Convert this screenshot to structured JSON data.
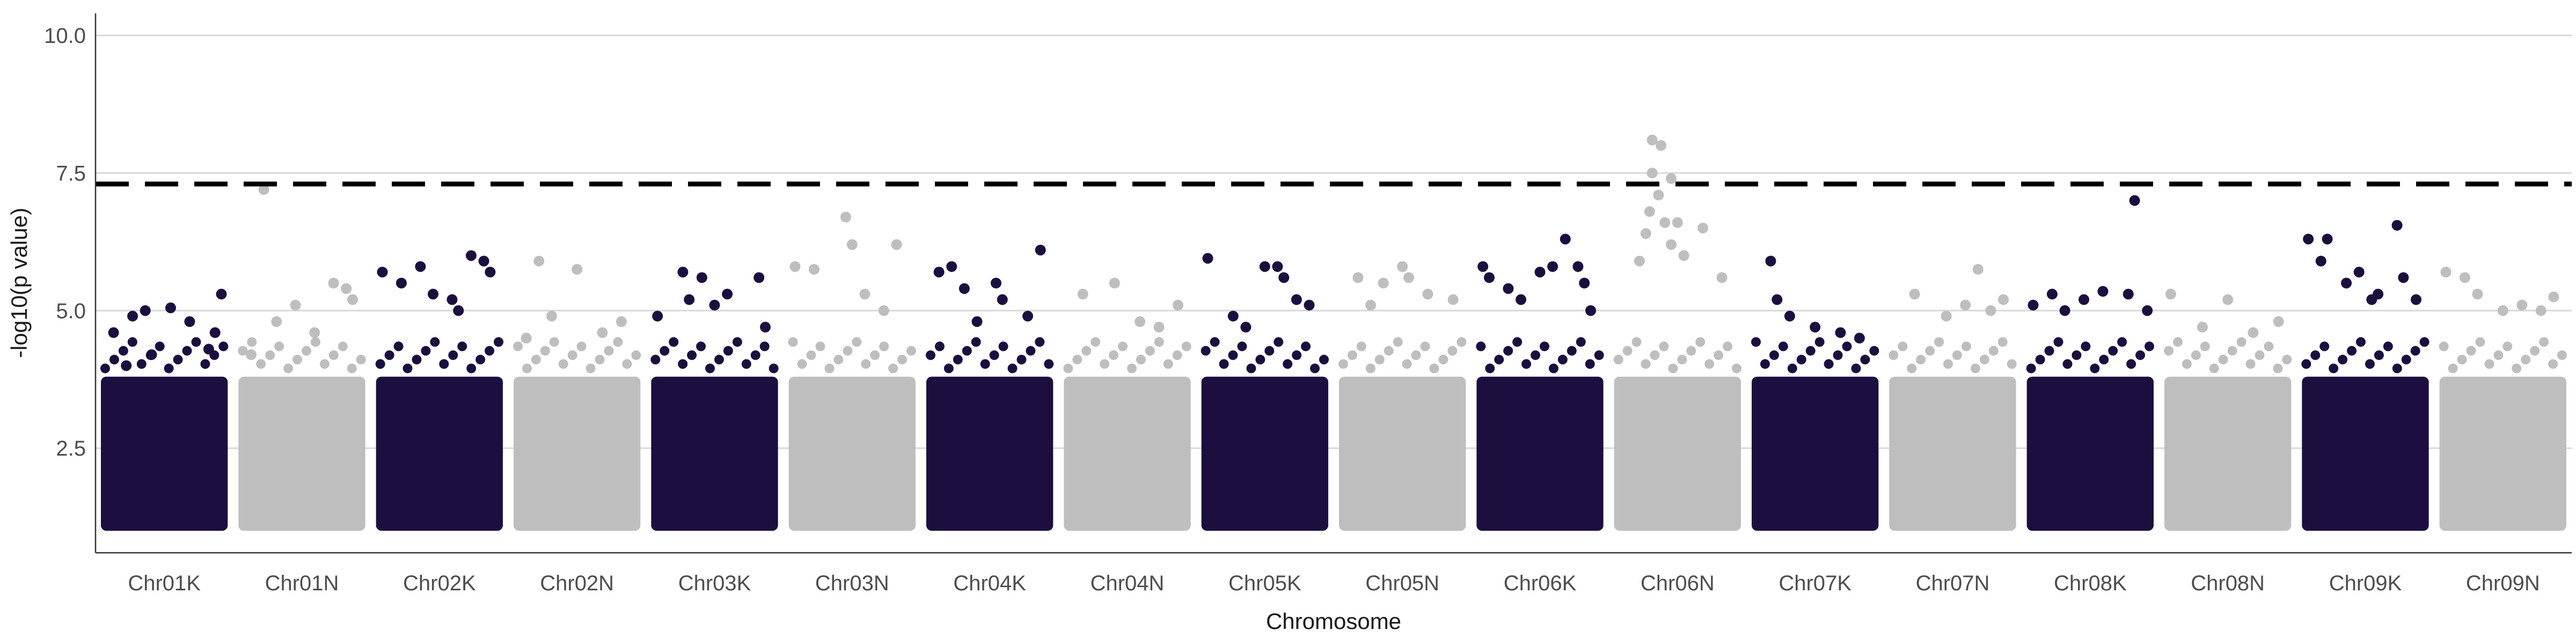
{
  "chart_data": {
    "type": "scatter",
    "title": "",
    "xlabel": "Chromosome",
    "ylabel": "-log10(p value)",
    "ylim": [
      0.6,
      10.4
    ],
    "yticks": [
      2.5,
      5.0,
      7.5,
      10.0
    ],
    "ytick_labels": [
      "2.5",
      "5.0",
      "7.5",
      "10.0"
    ],
    "grid": "horizontal major gridlines",
    "threshold": 7.3,
    "threshold_style": "dashed",
    "colors": {
      "dark": "#1c0f3f",
      "light": "#bebebe",
      "threshold": "#000000",
      "grid": "#d9d9d9"
    },
    "categories": [
      "Chr01K",
      "Chr01N",
      "Chr02K",
      "Chr02N",
      "Chr03K",
      "Chr03N",
      "Chr04K",
      "Chr04N",
      "Chr05K",
      "Chr05N",
      "Chr06K",
      "Chr06N",
      "Chr07K",
      "Chr07N",
      "Chr08K",
      "Chr08N",
      "Chr09K",
      "Chr09N"
    ],
    "series": [
      {
        "category": "Chr01K",
        "color": "dark",
        "points": [
          [
            0.1,
            4.6
          ],
          [
            0.25,
            4.9
          ],
          [
            0.35,
            5.0
          ],
          [
            0.4,
            4.2
          ],
          [
            0.55,
            5.05
          ],
          [
            0.7,
            4.8
          ],
          [
            0.85,
            4.3
          ],
          [
            0.95,
            5.3
          ],
          [
            0.9,
            4.6
          ],
          [
            0.2,
            4.0
          ]
        ]
      },
      {
        "category": "Chr01N",
        "color": "light",
        "points": [
          [
            0.2,
            7.2
          ],
          [
            0.3,
            4.8
          ],
          [
            0.45,
            5.1
          ],
          [
            0.6,
            4.6
          ],
          [
            0.75,
            5.5
          ],
          [
            0.85,
            5.4
          ],
          [
            0.9,
            5.2
          ],
          [
            0.1,
            4.2
          ]
        ]
      },
      {
        "category": "Chr02K",
        "color": "dark",
        "points": [
          [
            0.05,
            5.7
          ],
          [
            0.2,
            5.5
          ],
          [
            0.35,
            5.8
          ],
          [
            0.45,
            5.3
          ],
          [
            0.6,
            5.2
          ],
          [
            0.75,
            6.0
          ],
          [
            0.85,
            5.9
          ],
          [
            0.9,
            5.7
          ],
          [
            0.65,
            5.0
          ]
        ]
      },
      {
        "category": "Chr02N",
        "color": "light",
        "points": [
          [
            0.2,
            5.9
          ],
          [
            0.5,
            5.75
          ],
          [
            0.3,
            4.9
          ],
          [
            0.7,
            4.6
          ],
          [
            0.85,
            4.8
          ],
          [
            0.1,
            4.5
          ]
        ]
      },
      {
        "category": "Chr03K",
        "color": "dark",
        "points": [
          [
            0.05,
            4.9
          ],
          [
            0.25,
            5.7
          ],
          [
            0.4,
            5.6
          ],
          [
            0.5,
            5.1
          ],
          [
            0.6,
            5.3
          ],
          [
            0.85,
            5.6
          ],
          [
            0.9,
            4.7
          ],
          [
            0.3,
            5.2
          ]
        ]
      },
      {
        "category": "Chr03N",
        "color": "light",
        "points": [
          [
            0.05,
            5.8
          ],
          [
            0.2,
            5.75
          ],
          [
            0.45,
            6.7
          ],
          [
            0.5,
            6.2
          ],
          [
            0.85,
            6.2
          ],
          [
            0.6,
            5.3
          ],
          [
            0.75,
            5.0
          ]
        ]
      },
      {
        "category": "Chr04K",
        "color": "dark",
        "points": [
          [
            0.1,
            5.7
          ],
          [
            0.2,
            5.8
          ],
          [
            0.3,
            5.4
          ],
          [
            0.55,
            5.5
          ],
          [
            0.6,
            5.2
          ],
          [
            0.9,
            6.1
          ],
          [
            0.8,
            4.9
          ],
          [
            0.4,
            4.8
          ]
        ]
      },
      {
        "category": "Chr04N",
        "color": "light",
        "points": [
          [
            0.15,
            5.3
          ],
          [
            0.4,
            5.5
          ],
          [
            0.6,
            4.8
          ],
          [
            0.75,
            4.7
          ],
          [
            0.9,
            5.1
          ]
        ]
      },
      {
        "category": "Chr05K",
        "color": "dark",
        "points": [
          [
            0.05,
            5.95
          ],
          [
            0.25,
            4.9
          ],
          [
            0.5,
            5.8
          ],
          [
            0.6,
            5.8
          ],
          [
            0.65,
            5.6
          ],
          [
            0.75,
            5.2
          ],
          [
            0.85,
            5.1
          ],
          [
            0.35,
            4.7
          ]
        ]
      },
      {
        "category": "Chr05N",
        "color": "light",
        "points": [
          [
            0.15,
            5.6
          ],
          [
            0.35,
            5.5
          ],
          [
            0.5,
            5.8
          ],
          [
            0.55,
            5.6
          ],
          [
            0.7,
            5.3
          ],
          [
            0.9,
            5.2
          ],
          [
            0.25,
            5.1
          ]
        ]
      },
      {
        "category": "Chr06K",
        "color": "dark",
        "points": [
          [
            0.05,
            5.8
          ],
          [
            0.1,
            5.6
          ],
          [
            0.25,
            5.4
          ],
          [
            0.35,
            5.2
          ],
          [
            0.5,
            5.7
          ],
          [
            0.6,
            5.8
          ],
          [
            0.7,
            6.3
          ],
          [
            0.8,
            5.8
          ],
          [
            0.85,
            5.5
          ],
          [
            0.9,
            5.0
          ]
        ]
      },
      {
        "category": "Chr06N",
        "color": "light",
        "points": [
          [
            0.3,
            8.1
          ],
          [
            0.37,
            8.0
          ],
          [
            0.3,
            7.5
          ],
          [
            0.45,
            7.4
          ],
          [
            0.35,
            7.1
          ],
          [
            0.28,
            6.8
          ],
          [
            0.4,
            6.6
          ],
          [
            0.5,
            6.6
          ],
          [
            0.25,
            6.4
          ],
          [
            0.45,
            6.2
          ],
          [
            0.55,
            6.0
          ],
          [
            0.7,
            6.5
          ],
          [
            0.85,
            5.6
          ],
          [
            0.2,
            5.9
          ]
        ]
      },
      {
        "category": "Chr07K",
        "color": "dark",
        "points": [
          [
            0.15,
            5.9
          ],
          [
            0.2,
            5.2
          ],
          [
            0.3,
            4.9
          ],
          [
            0.5,
            4.7
          ],
          [
            0.7,
            4.6
          ],
          [
            0.85,
            4.5
          ]
        ]
      },
      {
        "category": "Chr07N",
        "color": "light",
        "points": [
          [
            0.2,
            5.3
          ],
          [
            0.45,
            4.9
          ],
          [
            0.6,
            5.1
          ],
          [
            0.7,
            5.75
          ],
          [
            0.8,
            5.0
          ],
          [
            0.9,
            5.2
          ]
        ]
      },
      {
        "category": "Chr08K",
        "color": "dark",
        "points": [
          [
            0.05,
            5.1
          ],
          [
            0.2,
            5.3
          ],
          [
            0.3,
            5.0
          ],
          [
            0.45,
            5.2
          ],
          [
            0.6,
            5.35
          ],
          [
            0.8,
            5.3
          ],
          [
            0.85,
            7.0
          ],
          [
            0.95,
            5.0
          ]
        ]
      },
      {
        "category": "Chr08N",
        "color": "light",
        "points": [
          [
            0.05,
            5.3
          ],
          [
            0.3,
            4.7
          ],
          [
            0.5,
            5.2
          ],
          [
            0.7,
            4.6
          ],
          [
            0.9,
            4.8
          ]
        ]
      },
      {
        "category": "Chr09K",
        "color": "dark",
        "points": [
          [
            0.05,
            6.3
          ],
          [
            0.15,
            5.9
          ],
          [
            0.2,
            6.3
          ],
          [
            0.35,
            5.5
          ],
          [
            0.45,
            5.7
          ],
          [
            0.55,
            5.2
          ],
          [
            0.6,
            5.3
          ],
          [
            0.75,
            6.55
          ],
          [
            0.8,
            5.6
          ],
          [
            0.9,
            5.2
          ]
        ]
      },
      {
        "category": "Chr09N",
        "color": "light",
        "points": [
          [
            0.05,
            5.7
          ],
          [
            0.2,
            5.6
          ],
          [
            0.3,
            5.3
          ],
          [
            0.5,
            5.0
          ],
          [
            0.65,
            5.1
          ],
          [
            0.8,
            5.0
          ],
          [
            0.9,
            5.25
          ]
        ]
      }
    ]
  }
}
